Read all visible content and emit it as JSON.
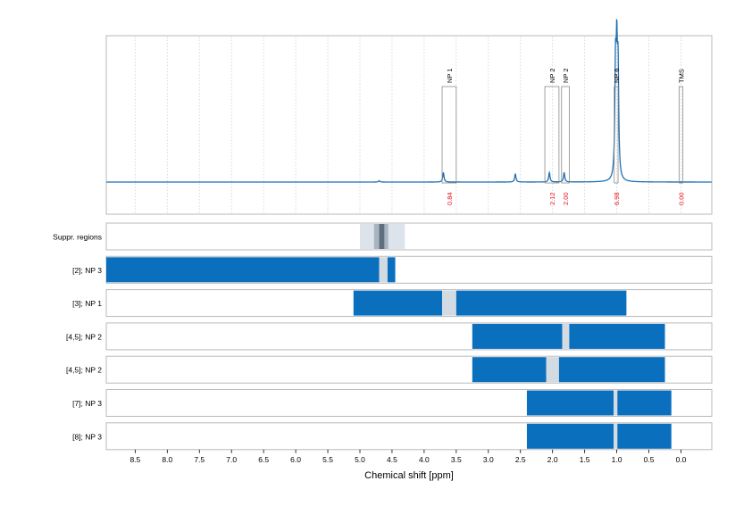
{
  "chart_data": {
    "type": "nmr-spectrum-with-range-bars",
    "xlabel": "Chemical shift [ppm]",
    "xlim": [
      8.95,
      -0.48
    ],
    "x_reversed": true,
    "xticks": [
      8.5,
      8.0,
      7.5,
      7.0,
      6.5,
      6.0,
      5.5,
      5.0,
      4.5,
      4.0,
      3.5,
      3.0,
      2.5,
      2.0,
      1.5,
      1.0,
      0.5,
      0.0
    ],
    "xtick_labels": [
      "8.5",
      "8.0",
      "7.5",
      "7.0",
      "6.5",
      "6.0",
      "5.5",
      "5.0",
      "4.5",
      "4.0",
      "3.5",
      "3.0",
      "2.5",
      "2.0",
      "1.5",
      "1.0",
      "0.5",
      "0.0"
    ],
    "grid": "vertical-dotted",
    "spectrum": {
      "color": "#1f6fb2",
      "peaks": [
        {
          "ppm": 3.7,
          "height": 0.07
        },
        {
          "ppm": 2.58,
          "height": 0.06
        },
        {
          "ppm": 2.05,
          "height": 0.07
        },
        {
          "ppm": 1.82,
          "height": 0.07
        },
        {
          "ppm": 1.0,
          "height": 0.82
        },
        {
          "ppm": 1.02,
          "height": 0.78
        },
        {
          "ppm": 0.98,
          "height": 0.75
        },
        {
          "ppm": 4.7,
          "height": 0.01
        }
      ]
    },
    "integrations": [
      {
        "label": "NP 1",
        "from": 3.72,
        "to": 3.5,
        "value": "0.84"
      },
      {
        "label": "NP 2",
        "from": 2.12,
        "to": 1.9,
        "value": "2.12"
      },
      {
        "label": "NP 2",
        "from": 1.86,
        "to": 1.74,
        "value": "2.00"
      },
      {
        "label": "NP 6",
        "from": 1.04,
        "to": 0.98,
        "value": "6.98"
      },
      {
        "label": "TMS",
        "from": 0.03,
        "to": -0.03,
        "value": "0.00"
      }
    ],
    "integration_value_color": "#e8131b",
    "rows": [
      {
        "label": "Suppr. regions",
        "bars": [
          {
            "from": 5.0,
            "to": 4.3,
            "color": "#dce3ea"
          },
          {
            "from": 4.78,
            "to": 4.56,
            "color": "#a8b4c0"
          },
          {
            "from": 4.7,
            "to": 4.62,
            "color": "#5f6f7f"
          }
        ]
      },
      {
        "label": "[2]; NP 3",
        "bars": [
          {
            "from": 8.95,
            "to": 4.7,
            "color": "#0a6fbd"
          },
          {
            "from": 4.7,
            "to": 4.57,
            "color": "#d3dbe2"
          },
          {
            "from": 4.57,
            "to": 4.45,
            "color": "#0a6fbd"
          }
        ]
      },
      {
        "label": "[3]; NP 1",
        "bars": [
          {
            "from": 5.1,
            "to": 3.72,
            "color": "#0a6fbd"
          },
          {
            "from": 3.72,
            "to": 3.5,
            "color": "#d3dbe2"
          },
          {
            "from": 3.5,
            "to": 0.85,
            "color": "#0a6fbd"
          }
        ]
      },
      {
        "label": "[4,5]; NP 2",
        "bars": [
          {
            "from": 3.25,
            "to": 1.85,
            "color": "#0a6fbd"
          },
          {
            "from": 1.85,
            "to": 1.74,
            "color": "#d3dbe2"
          },
          {
            "from": 1.74,
            "to": 0.25,
            "color": "#0a6fbd"
          }
        ]
      },
      {
        "label": "[4,5]; NP 2",
        "bars": [
          {
            "from": 3.25,
            "to": 2.1,
            "color": "#0a6fbd"
          },
          {
            "from": 2.1,
            "to": 1.9,
            "color": "#d3dbe2"
          },
          {
            "from": 1.9,
            "to": 0.25,
            "color": "#0a6fbd"
          }
        ]
      },
      {
        "label": "[7]; NP 3",
        "bars": [
          {
            "from": 2.4,
            "to": 1.05,
            "color": "#0a6fbd"
          },
          {
            "from": 1.05,
            "to": 0.99,
            "color": "#d3dbe2"
          },
          {
            "from": 0.99,
            "to": 0.15,
            "color": "#0a6fbd"
          }
        ]
      },
      {
        "label": "[8]; NP 3",
        "bars": [
          {
            "from": 2.4,
            "to": 1.05,
            "color": "#0a6fbd"
          },
          {
            "from": 1.05,
            "to": 0.99,
            "color": "#d3dbe2"
          },
          {
            "from": 0.99,
            "to": 0.15,
            "color": "#0a6fbd"
          }
        ]
      }
    ]
  }
}
